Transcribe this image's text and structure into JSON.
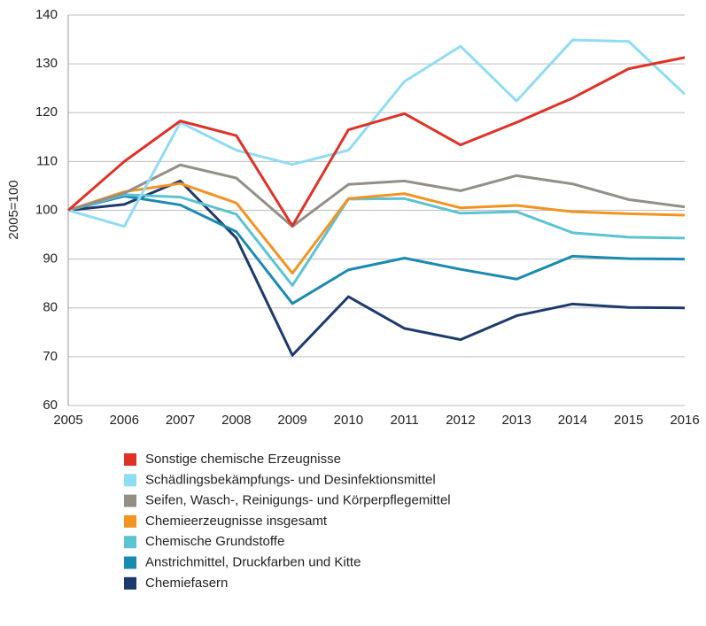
{
  "chart_data": {
    "type": "line",
    "y_label": "2005=100",
    "categories": [
      "2005",
      "2006",
      "2007",
      "2008",
      "2009",
      "2010",
      "2011",
      "2012",
      "2013",
      "2014",
      "2015",
      "2016"
    ],
    "series": [
      {
        "name": "Sonstige chemische Erzeugnisse",
        "color": "#e03127",
        "values": [
          100,
          110,
          118.3,
          115.3,
          96.8,
          116.5,
          119.8,
          113.4,
          118,
          123,
          129,
          131.3
        ]
      },
      {
        "name": "Schädlingsbekämpfungs- und Desinfektionsmittel",
        "color": "#8fdcf5",
        "values": [
          100,
          96.7,
          118,
          112.3,
          109.4,
          112.3,
          126.4,
          133.6,
          122.4,
          134.9,
          134.6,
          123.8
        ]
      },
      {
        "name": "Seifen, Wasch-, Reinigungs- und Körperpflegemittel",
        "color": "#938e86",
        "values": [
          100,
          103.5,
          109.3,
          106.6,
          96.7,
          105.3,
          106,
          104,
          107.1,
          105.4,
          102.2,
          100.7
        ]
      },
      {
        "name": "Chemieerzeugnisse insgesamt",
        "color": "#f39322",
        "values": [
          100,
          103.8,
          105.5,
          101.5,
          87.1,
          102.4,
          103.4,
          100.5,
          101,
          99.7,
          99.3,
          99
        ]
      },
      {
        "name": "Chemische Grundstoffe",
        "color": "#5cc3d1",
        "values": [
          100,
          103.2,
          102.7,
          99.2,
          84.6,
          102.3,
          102.4,
          99.4,
          99.7,
          95.4,
          94.5,
          94.3
        ]
      },
      {
        "name": "Anstrichmittel, Druckfarben und Kitte",
        "color": "#1a8bb0",
        "values": [
          100,
          102.9,
          101.1,
          95.6,
          80.9,
          87.8,
          90.2,
          87.9,
          85.9,
          90.6,
          90.1,
          90
        ]
      },
      {
        "name": "Chemiefasern",
        "color": "#1d3a6d",
        "values": [
          100,
          101.2,
          106,
          94.3,
          70.3,
          82.3,
          75.8,
          73.5,
          78.4,
          80.8,
          80.1,
          80
        ]
      }
    ],
    "ylim": [
      60,
      140
    ],
    "yticks": [
      60,
      70,
      80,
      90,
      100,
      110,
      120,
      130,
      140
    ],
    "grid": true,
    "legend": "bottom"
  }
}
